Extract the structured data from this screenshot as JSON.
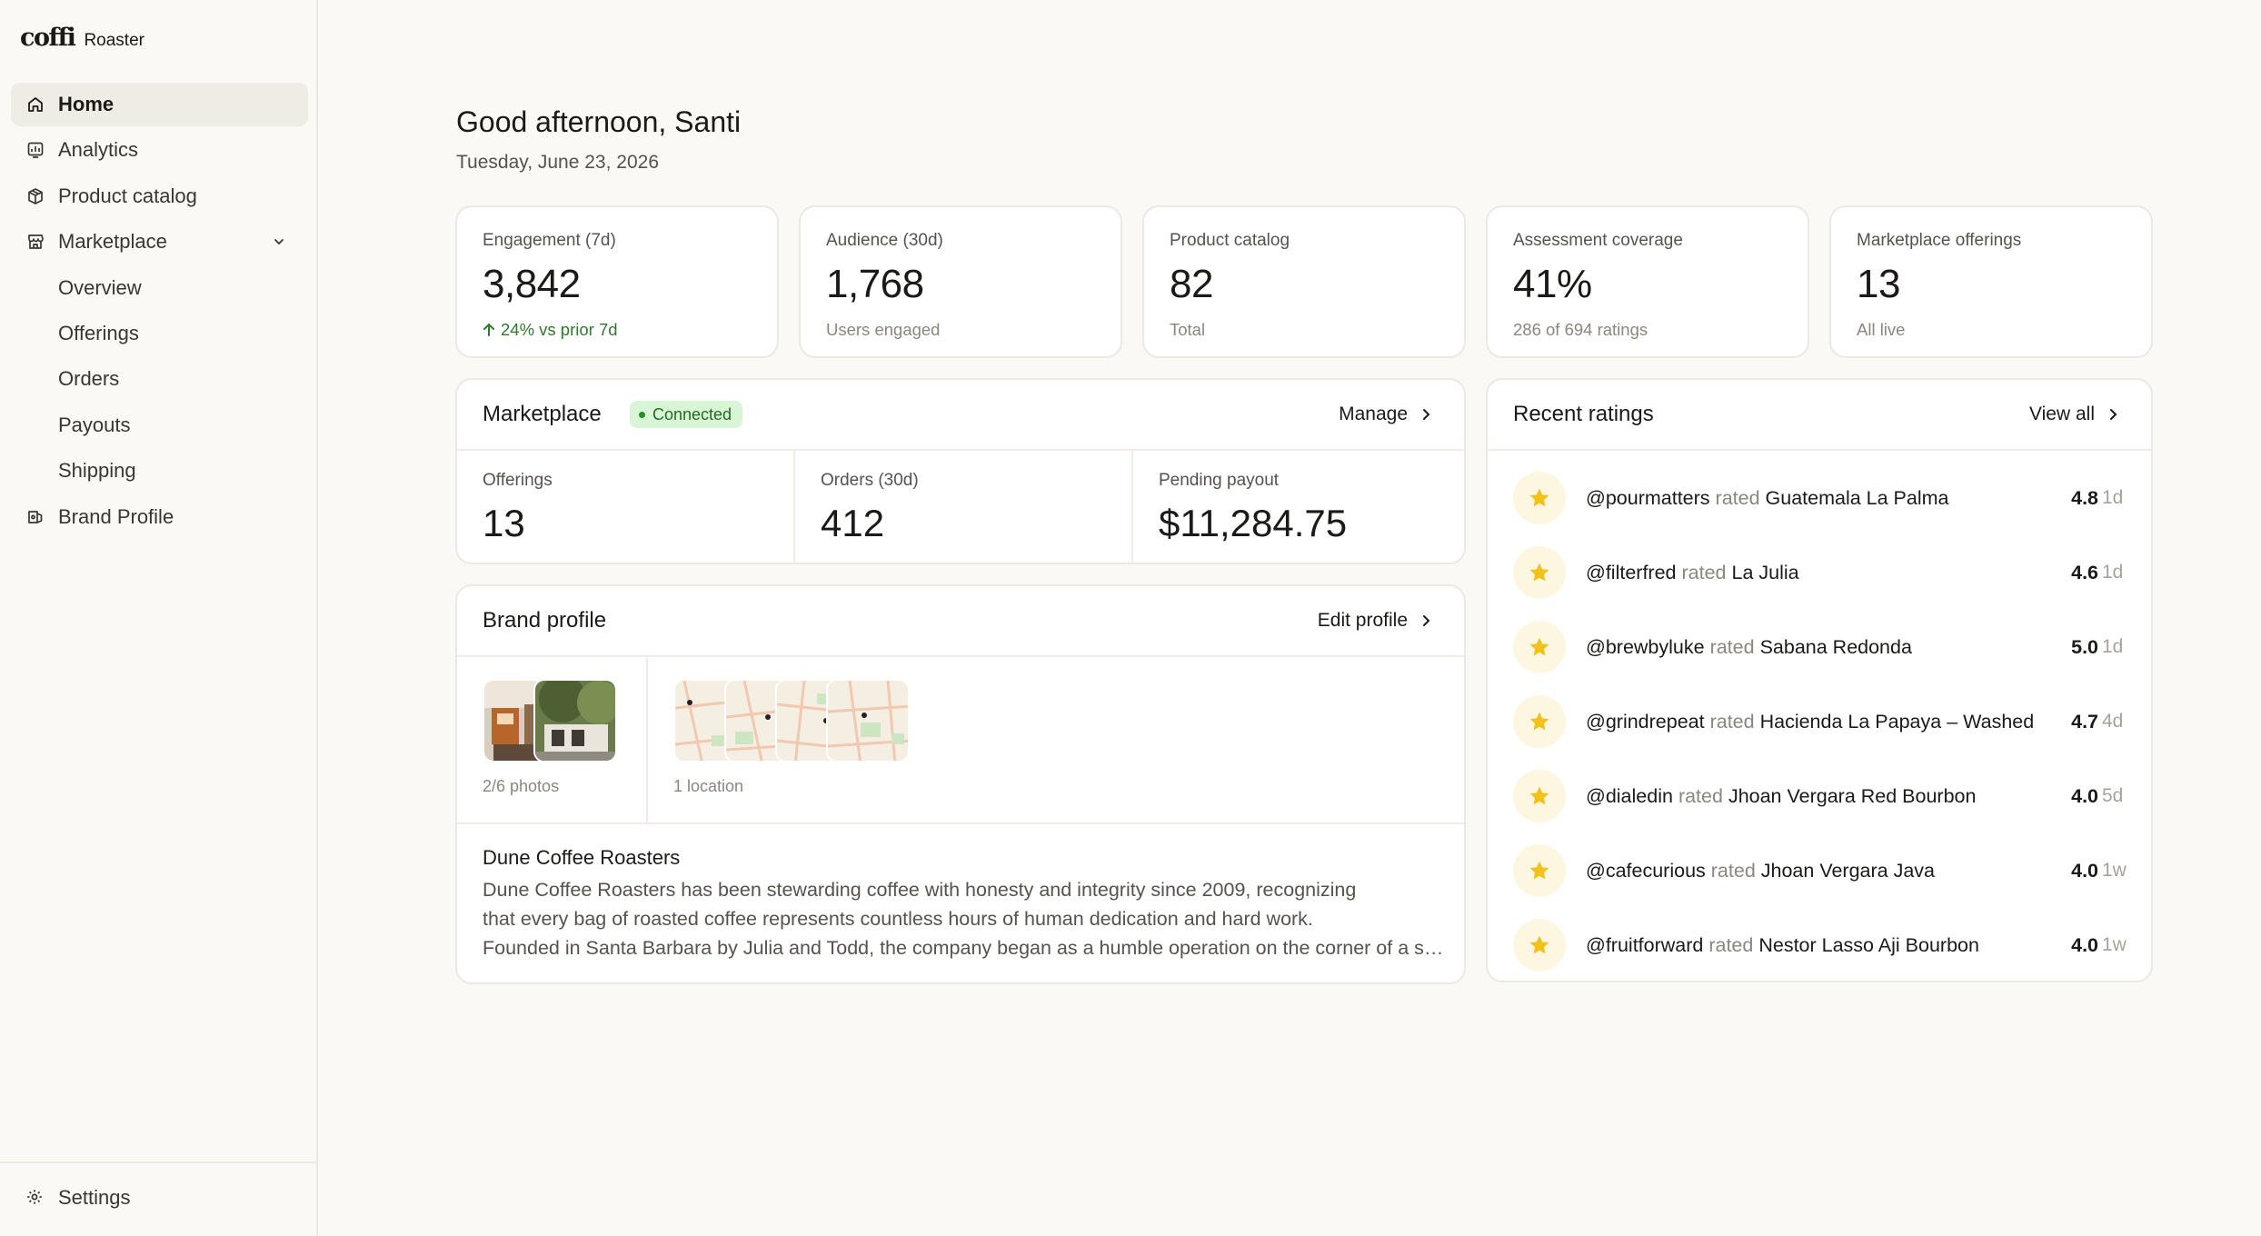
{
  "brand": {
    "logo": "coffi",
    "sub": "Roaster"
  },
  "nav": {
    "items": [
      {
        "label": "Home",
        "icon": "home-icon",
        "active": true
      },
      {
        "label": "Analytics",
        "icon": "analytics-icon"
      },
      {
        "label": "Product catalog",
        "icon": "box-icon"
      },
      {
        "label": "Marketplace",
        "icon": "store-icon",
        "expanded": true
      },
      {
        "label": "Overview",
        "sub": true
      },
      {
        "label": "Offerings",
        "sub": true
      },
      {
        "label": "Orders",
        "sub": true
      },
      {
        "label": "Payouts",
        "sub": true
      },
      {
        "label": "Shipping",
        "sub": true
      },
      {
        "label": "Brand Profile",
        "icon": "brand-icon"
      }
    ],
    "settings": "Settings"
  },
  "header": {
    "greeting": "Good afternoon, Santi",
    "date": "Tuesday, June 23, 2026"
  },
  "stats": [
    {
      "label": "Engagement (7d)",
      "value": "3,842",
      "sub": "24% vs prior 7d",
      "trend": "up"
    },
    {
      "label": "Audience (30d)",
      "value": "1,768",
      "sub": "Users engaged"
    },
    {
      "label": "Product catalog",
      "value": "82",
      "sub": "Total"
    },
    {
      "label": "Assessment coverage",
      "value": "41%",
      "sub": "286 of 694 ratings"
    },
    {
      "label": "Marketplace offerings",
      "value": "13",
      "sub": "All live"
    }
  ],
  "marketplace": {
    "title": "Marketplace",
    "status": "Connected",
    "action": "Manage",
    "metrics": [
      {
        "label": "Offerings",
        "value": "13"
      },
      {
        "label": "Orders (30d)",
        "value": "412"
      },
      {
        "label": "Pending payout",
        "value": "$11,284.75"
      }
    ]
  },
  "brand_profile": {
    "title": "Brand profile",
    "action": "Edit profile",
    "photos_caption": "2/6 photos",
    "locations_caption": "1 location",
    "name": "Dune Coffee Roasters",
    "description_lines": [
      "Dune Coffee Roasters has been stewarding coffee with honesty and integrity since 2009, recognizing",
      "that every bag of roasted coffee represents countless hours of human dedication and hard work.",
      "Founded in Santa Barbara by Julia and Todd, the company began as a humble operation on the corner of a small street."
    ]
  },
  "ratings": {
    "title": "Recent ratings",
    "action": "View all",
    "verb": "rated",
    "items": [
      {
        "user": "@pourmatters",
        "product": "Guatemala La Palma",
        "score": "4.8",
        "age": "1d"
      },
      {
        "user": "@filterfred",
        "product": "La Julia",
        "score": "4.6",
        "age": "1d"
      },
      {
        "user": "@brewbyluke",
        "product": "Sabana Redonda",
        "score": "5.0",
        "age": "1d"
      },
      {
        "user": "@grindrepeat",
        "product": "Hacienda La Papaya – Washed",
        "score": "4.7",
        "age": "4d"
      },
      {
        "user": "@dialedin",
        "product": "Jhoan Vergara Red Bourbon",
        "score": "4.0",
        "age": "5d"
      },
      {
        "user": "@cafecurious",
        "product": "Jhoan Vergara Java",
        "score": "4.0",
        "age": "1w"
      },
      {
        "user": "@fruitforward",
        "product": "Nestor Lasso Aji Bourbon",
        "score": "4.0",
        "age": "1w"
      }
    ]
  },
  "colors": {
    "accent_star": "#f2c21a",
    "connected": "#2d8a2d",
    "up_trend": "#2d7a2d"
  }
}
